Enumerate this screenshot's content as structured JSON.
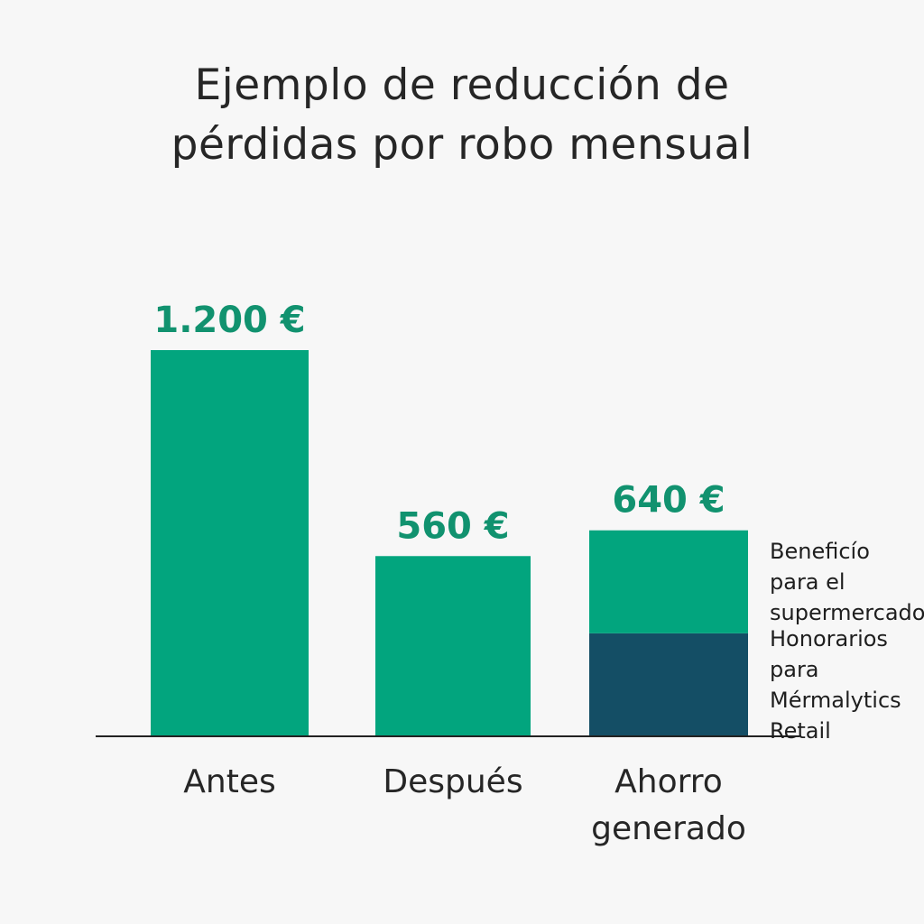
{
  "colors": {
    "primary": "#02a57e",
    "secondary": "#144e65",
    "value_text": "#11926f",
    "axis": "#222222"
  },
  "chart_data": {
    "type": "bar",
    "title_lines": [
      "Ejemplo de reducción de",
      "pérdidas por robo mensual"
    ],
    "categories": [
      [
        "Antes"
      ],
      [
        "Después"
      ],
      [
        "Ahorro",
        "generado"
      ]
    ],
    "values": [
      1200,
      560,
      640
    ],
    "value_labels": [
      "1.200 €",
      "560 €",
      "640 €"
    ],
    "stack": {
      "category_index": 2,
      "segments": [
        {
          "name_lines": [
            "Honorarios",
            "para",
            "Mérmalytics",
            "Retail"
          ],
          "value": 320,
          "color": "secondary"
        },
        {
          "name_lines": [
            "Beneficío",
            "para el",
            "supermercado"
          ],
          "value": 320,
          "color": "primary"
        }
      ]
    },
    "ylim": [
      0,
      1200
    ],
    "grid": false,
    "legend": "right, inline beside stacked bar"
  }
}
